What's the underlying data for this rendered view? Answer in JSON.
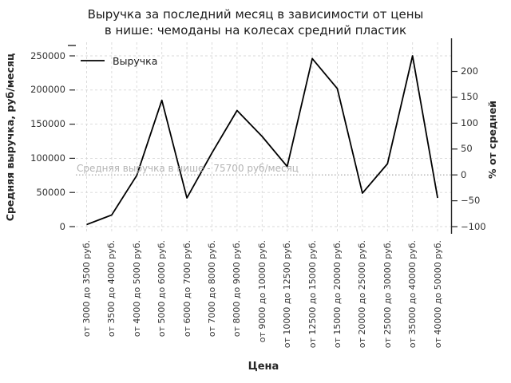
{
  "title": {
    "line1": "Выручка за последний месяц в зависимости от цены",
    "line2": "в нише: чемоданы на колесах средний пластик"
  },
  "chart_data": {
    "type": "line",
    "title": "Выручка за последний месяц в зависимости от цены в нише: чемоданы на колесах средний пластик",
    "categories": [
      "от 3000 до 3500 руб.",
      "от 3500 до 4000 руб.",
      "от 4000 до 5000 руб.",
      "от 5000 до 6000 руб.",
      "от 6000 до 7000 руб.",
      "от 7000 до 8000 руб.",
      "от 8000 до 9000 руб.",
      "от 9000 до 10000 руб.",
      "от 10000 до 12500 руб.",
      "от 12500 до 15000 руб.",
      "от 15000 до 20000 руб.",
      "от 20000 до 25000 руб.",
      "от 25000 до 30000 руб.",
      "от 35000 до 40000 руб.",
      "от 40000 до 50000 руб."
    ],
    "series": [
      {
        "name": "Выручка",
        "values": [
          3000,
          17000,
          75000,
          185000,
          42000,
          108000,
          170000,
          132000,
          88000,
          246000,
          202000,
          49000,
          92000,
          250000,
          42000
        ]
      }
    ],
    "xlabel": "Цена",
    "ylabel_left": "Средняя выручка, руб/месяц",
    "ylabel_right": "% от средней",
    "y_ticks_left": [
      0,
      50000,
      100000,
      150000,
      200000,
      250000
    ],
    "y_ticks_right": [
      -100,
      -50,
      0,
      50,
      100,
      150,
      200
    ],
    "ylim_left": [
      0,
      250000
    ],
    "ylim_right": [
      -100,
      230
    ],
    "grid": true,
    "legend_position": "upper-left",
    "average_line": {
      "value": 75700,
      "label": "Средняя выручка в нише - 75700 руб/месяц"
    },
    "colors": {
      "line": "#000000",
      "grid": "#d8d8d8",
      "average_line": "#9e9e9e",
      "annotation_text": "#b4b4b4",
      "axis": "#262626",
      "tick_text": "#333333"
    }
  }
}
